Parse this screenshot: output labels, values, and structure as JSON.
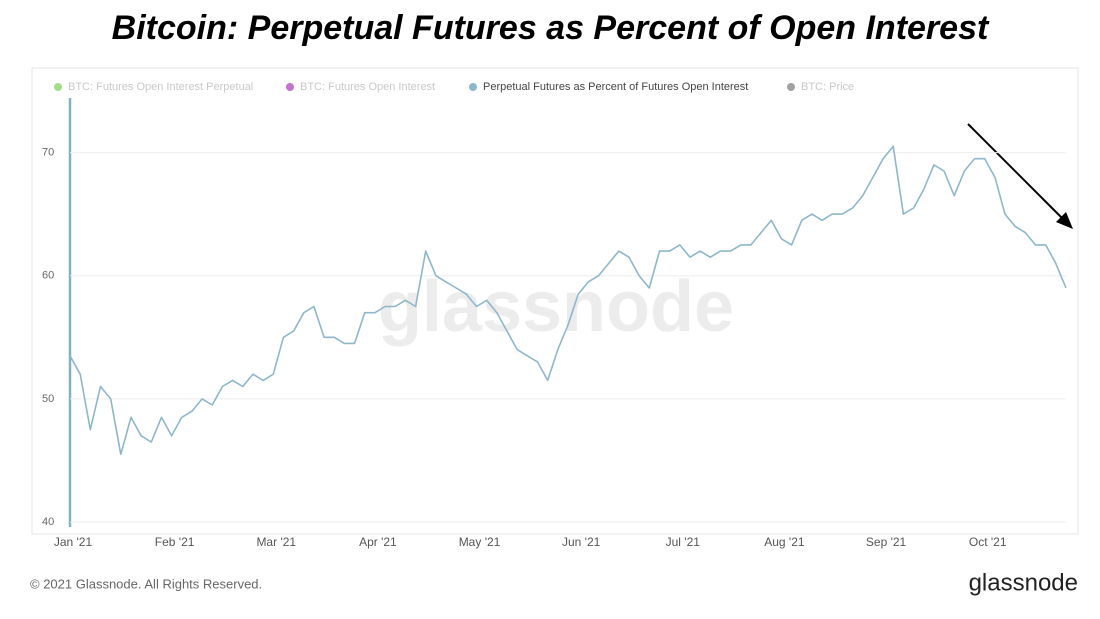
{
  "chart_data": {
    "type": "line",
    "title": "Bitcoin: Perpetual Futures as Percent of Open Interest",
    "legend": [
      {
        "name": "BTC: Futures Open Interest Perpetual",
        "color": "#8fd36a"
      },
      {
        "name": "BTC: Futures Open Interest",
        "color": "#b54fc0"
      },
      {
        "name": "Perpetual Futures as Percent of Futures Open Interest",
        "color": "#8db7cb"
      },
      {
        "name": "BTC: Price",
        "color": "#8a8a8a"
      }
    ],
    "categories": [
      "Jan '21",
      null,
      null,
      null,
      null,
      null,
      null,
      null,
      null,
      null,
      "Feb '21",
      null,
      null,
      null,
      null,
      null,
      null,
      null,
      null,
      null,
      "Mar '21",
      null,
      null,
      null,
      null,
      null,
      null,
      null,
      null,
      null,
      "Apr '21",
      null,
      null,
      null,
      null,
      null,
      null,
      null,
      null,
      null,
      "May '21",
      null,
      null,
      null,
      null,
      null,
      null,
      null,
      null,
      null,
      "Jun '21",
      null,
      null,
      null,
      null,
      null,
      null,
      null,
      null,
      null,
      "Jul '21",
      null,
      null,
      null,
      null,
      null,
      null,
      null,
      null,
      null,
      "Aug '21",
      null,
      null,
      null,
      null,
      null,
      null,
      null,
      null,
      null,
      "Sep '21",
      null,
      null,
      null,
      null,
      null,
      null,
      null,
      null,
      null,
      "Oct '21",
      null,
      null,
      null,
      null,
      null,
      null,
      null,
      null
    ],
    "series": [
      {
        "name": "Perpetual Futures as Percent of Futures Open Interest",
        "color": "#8db7cb",
        "values": [
          53.5,
          52,
          47.5,
          51,
          50,
          45.5,
          48.5,
          47,
          46.5,
          48.5,
          47,
          48.5,
          49,
          50,
          49.5,
          51,
          51.5,
          51,
          52,
          51.5,
          52,
          55,
          55.5,
          57,
          57.5,
          55,
          55,
          54.5,
          54.5,
          57,
          57,
          57.5,
          57.5,
          58,
          57.5,
          62,
          60,
          59.5,
          59,
          58.5,
          57.5,
          58,
          57,
          55.5,
          54,
          53.5,
          53,
          51.5,
          54,
          56,
          58.5,
          59.5,
          60,
          61,
          62,
          61.5,
          60,
          59,
          62,
          62,
          62.5,
          61.5,
          62,
          61.5,
          62,
          62,
          62.5,
          62.5,
          63.5,
          64.5,
          63,
          62.5,
          64.5,
          65,
          64.5,
          65,
          65,
          65.5,
          66.5,
          68,
          69.5,
          70.5,
          65,
          65.5,
          67,
          69,
          68.5,
          66.5,
          68.5,
          69.5,
          69.5,
          68,
          65,
          64,
          63.5,
          62.5,
          62.5,
          61,
          59
        ]
      }
    ],
    "ylim": [
      40,
      75
    ],
    "yticks": [
      40,
      50,
      60,
      70
    ],
    "grid": true,
    "watermark": "glassnode",
    "footer": "© 2021 Glassnode. All Rights Reserved.",
    "brand": "glassnode"
  }
}
